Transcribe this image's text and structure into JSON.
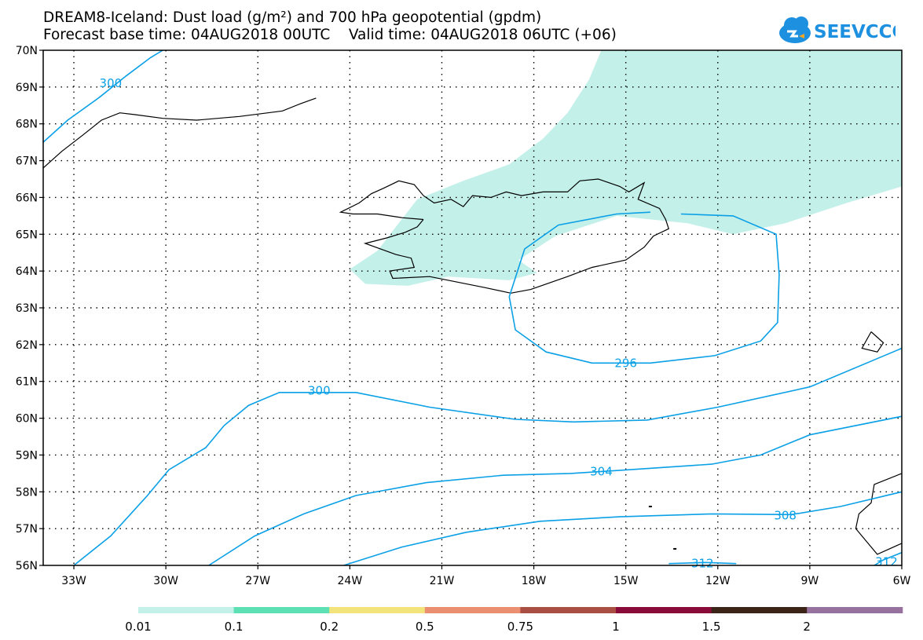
{
  "header": {
    "title_line1": "DREAM8-Iceland: Dust load (g/m²) and 700 hPa geopotential (gpdm)",
    "title_line2": "Forecast base time: 04AUG2018 00UTC    Valid time: 04AUG2018 06UTC (+06)"
  },
  "logo": {
    "text": "SEEVCCC",
    "icon": "cloud-logo-icon",
    "color": "#1e90e0"
  },
  "map": {
    "lon_range": [
      -34,
      -6
    ],
    "lat_range": [
      56,
      70
    ],
    "lon_ticks": [
      {
        "v": -33,
        "label": "33W"
      },
      {
        "v": -30,
        "label": "30W"
      },
      {
        "v": -27,
        "label": "27W"
      },
      {
        "v": -24,
        "label": "24W"
      },
      {
        "v": -21,
        "label": "21W"
      },
      {
        "v": -18,
        "label": "18W"
      },
      {
        "v": -15,
        "label": "15W"
      },
      {
        "v": -12,
        "label": "12W"
      },
      {
        "v": -9,
        "label": "9W"
      },
      {
        "v": -6,
        "label": "6W"
      }
    ],
    "lat_ticks": [
      {
        "v": 56,
        "label": "56N"
      },
      {
        "v": 57,
        "label": "57N"
      },
      {
        "v": 58,
        "label": "58N"
      },
      {
        "v": 59,
        "label": "59N"
      },
      {
        "v": 60,
        "label": "60N"
      },
      {
        "v": 61,
        "label": "61N"
      },
      {
        "v": 62,
        "label": "62N"
      },
      {
        "v": 63,
        "label": "63N"
      },
      {
        "v": 64,
        "label": "64N"
      },
      {
        "v": 65,
        "label": "65N"
      },
      {
        "v": 66,
        "label": "66N"
      },
      {
        "v": 67,
        "label": "67N"
      },
      {
        "v": 68,
        "label": "68N"
      },
      {
        "v": 69,
        "label": "69N"
      },
      {
        "v": 70,
        "label": "70N"
      }
    ],
    "contour_color": "#0aa0e6",
    "dust_fill_color": "#c4f0ea",
    "contours": [
      {
        "level": "300",
        "label_at": [
          -31.8,
          69.1
        ],
        "path": [
          [
            -34,
            67.5
          ],
          [
            -33.2,
            68.1
          ],
          [
            -32.2,
            68.7
          ],
          [
            -31.3,
            69.3
          ],
          [
            -30.5,
            69.8
          ],
          [
            -30.1,
            70
          ]
        ]
      },
      {
        "level": "296",
        "label_at": [
          -15.0,
          61.5
        ],
        "path": [
          [
            -13.2,
            65.55
          ],
          [
            -11.5,
            65.5
          ],
          [
            -10.1,
            65.0
          ],
          [
            -10.0,
            63.9
          ],
          [
            -10.05,
            62.6
          ],
          [
            -10.6,
            62.1
          ],
          [
            -12.1,
            61.7
          ],
          [
            -14.2,
            61.5
          ],
          [
            -16.1,
            61.5
          ],
          [
            -17.6,
            61.8
          ],
          [
            -18.6,
            62.4
          ],
          [
            -18.8,
            63.3
          ],
          [
            -18.3,
            64.6
          ],
          [
            -17.2,
            65.25
          ],
          [
            -15.3,
            65.55
          ],
          [
            -14.2,
            65.6
          ]
        ]
      },
      {
        "level": "300",
        "label_at": [
          -25.0,
          60.75
        ],
        "path": [
          [
            -33,
            56
          ],
          [
            -31.8,
            56.8
          ],
          [
            -30.6,
            57.9
          ],
          [
            -29.9,
            58.6
          ],
          [
            -28.7,
            59.2
          ],
          [
            -28.1,
            59.8
          ],
          [
            -27.3,
            60.35
          ],
          [
            -26.3,
            60.7
          ],
          [
            -23.8,
            60.7
          ],
          [
            -21.4,
            60.3
          ],
          [
            -18.6,
            59.97
          ],
          [
            -16.7,
            59.9
          ],
          [
            -14.3,
            59.95
          ],
          [
            -12.0,
            60.3
          ],
          [
            -9.0,
            60.85
          ],
          [
            -6,
            61.9
          ]
        ]
      },
      {
        "level": "304",
        "label_at": [
          -15.8,
          58.55
        ],
        "path": [
          [
            -28.6,
            56
          ],
          [
            -27.1,
            56.8
          ],
          [
            -25.5,
            57.4
          ],
          [
            -23.8,
            57.9
          ],
          [
            -21.5,
            58.25
          ],
          [
            -19,
            58.45
          ],
          [
            -16.8,
            58.5
          ],
          [
            -14.9,
            58.6
          ],
          [
            -12.2,
            58.75
          ],
          [
            -10.6,
            59.0
          ],
          [
            -9.0,
            59.55
          ],
          [
            -6,
            60.05
          ]
        ]
      },
      {
        "level": "308",
        "label_at": [
          -9.8,
          57.35
        ],
        "path": [
          [
            -24.2,
            56
          ],
          [
            -22.3,
            56.5
          ],
          [
            -20.2,
            56.9
          ],
          [
            -17.8,
            57.2
          ],
          [
            -15.2,
            57.32
          ],
          [
            -12.2,
            57.4
          ],
          [
            -9.6,
            57.38
          ],
          [
            -8.0,
            57.6
          ],
          [
            -6,
            58.0
          ]
        ]
      },
      {
        "level": "312",
        "label_at": [
          -12.5,
          56.05
        ],
        "path": [
          [
            -13.6,
            56.05
          ],
          [
            -12.4,
            56.08
          ],
          [
            -11.4,
            56.05
          ]
        ]
      },
      {
        "level": "312",
        "label_at": [
          -6.5,
          56.1
        ],
        "path": [
          [
            -6.9,
            56
          ],
          [
            -6.6,
            56.15
          ],
          [
            -6,
            56.35
          ]
        ]
      }
    ],
    "dust_region": [
      [
        -15.8,
        70
      ],
      [
        -6,
        70
      ],
      [
        -6,
        66.3
      ],
      [
        -7.8,
        65.85
      ],
      [
        -9.8,
        65.3
      ],
      [
        -11.5,
        65.0
      ],
      [
        -13.0,
        65.3
      ],
      [
        -15.3,
        65.5
      ],
      [
        -17.3,
        64.95
      ],
      [
        -18.5,
        64.3
      ],
      [
        -17.9,
        63.95
      ],
      [
        -18.8,
        63.75
      ],
      [
        -20.8,
        63.85
      ],
      [
        -22.1,
        63.6
      ],
      [
        -23.5,
        63.65
      ],
      [
        -24.0,
        64.05
      ],
      [
        -23.1,
        64.55
      ],
      [
        -22.5,
        65.2
      ],
      [
        -21.8,
        65.95
      ],
      [
        -20.3,
        66.45
      ],
      [
        -18.8,
        66.9
      ],
      [
        -17.7,
        67.6
      ],
      [
        -16.9,
        68.3
      ],
      [
        -16.2,
        69.2
      ]
    ],
    "coastlines": [
      [
        [
          -21.6,
          65.4
        ],
        [
          -22.3,
          65.45
        ],
        [
          -23.1,
          65.55
        ],
        [
          -23.9,
          65.55
        ],
        [
          -24.3,
          65.6
        ],
        [
          -23.7,
          65.85
        ],
        [
          -23.3,
          66.1
        ],
        [
          -22.9,
          66.25
        ],
        [
          -22.4,
          66.45
        ],
        [
          -21.9,
          66.35
        ],
        [
          -21.6,
          66.05
        ],
        [
          -21.25,
          65.85
        ],
        [
          -20.7,
          65.95
        ],
        [
          -20.3,
          65.75
        ],
        [
          -20.0,
          66.05
        ],
        [
          -19.4,
          66.0
        ],
        [
          -18.9,
          66.15
        ],
        [
          -18.4,
          66.05
        ],
        [
          -17.7,
          66.15
        ],
        [
          -16.9,
          66.15
        ],
        [
          -16.5,
          66.45
        ],
        [
          -15.9,
          66.5
        ],
        [
          -15.2,
          66.3
        ],
        [
          -14.9,
          66.15
        ],
        [
          -14.4,
          66.4
        ],
        [
          -14.6,
          65.95
        ],
        [
          -13.9,
          65.7
        ],
        [
          -13.7,
          65.4
        ],
        [
          -13.6,
          65.15
        ],
        [
          -14.1,
          64.95
        ],
        [
          -14.4,
          64.65
        ],
        [
          -15.0,
          64.3
        ],
        [
          -16.1,
          64.1
        ],
        [
          -16.9,
          63.85
        ],
        [
          -18.1,
          63.5
        ],
        [
          -18.75,
          63.4
        ],
        [
          -19.6,
          63.55
        ],
        [
          -20.5,
          63.7
        ],
        [
          -21.4,
          63.85
        ],
        [
          -22.6,
          63.8
        ],
        [
          -22.7,
          64.0
        ],
        [
          -21.9,
          64.1
        ],
        [
          -22.0,
          64.35
        ],
        [
          -22.5,
          64.45
        ],
        [
          -23.5,
          64.75
        ],
        [
          -22.8,
          64.9
        ],
        [
          -22.2,
          65.05
        ],
        [
          -21.8,
          65.2
        ],
        [
          -21.6,
          65.4
        ]
      ],
      [
        [
          -34,
          66.8
        ],
        [
          -33.4,
          67.25
        ],
        [
          -32.7,
          67.7
        ],
        [
          -32.1,
          68.1
        ],
        [
          -31.5,
          68.3
        ],
        [
          -31.0,
          68.25
        ],
        [
          -30.1,
          68.15
        ],
        [
          -29.0,
          68.1
        ],
        [
          -27.6,
          68.2
        ],
        [
          -26.2,
          68.35
        ],
        [
          -25.6,
          68.55
        ],
        [
          -25.1,
          68.7
        ]
      ],
      [
        [
          -7.0,
          62.35
        ],
        [
          -6.6,
          62.05
        ],
        [
          -6.8,
          61.8
        ],
        [
          -7.3,
          61.9
        ],
        [
          -7.0,
          62.35
        ]
      ],
      [
        [
          -6,
          58.5
        ],
        [
          -6.9,
          58.2
        ],
        [
          -7.0,
          57.7
        ],
        [
          -7.4,
          57.4
        ],
        [
          -7.5,
          57.0
        ],
        [
          -7.2,
          56.7
        ],
        [
          -6.8,
          56.3
        ],
        [
          -6,
          56.6
        ]
      ]
    ],
    "islets": [
      [
        -14.2,
        57.6
      ],
      [
        -13.4,
        56.45
      ]
    ]
  },
  "colorbar": {
    "bins": [
      {
        "color": "#c4f0ea"
      },
      {
        "color": "#5ce0b4"
      },
      {
        "color": "#f2e47a"
      },
      {
        "color": "#ea9070"
      },
      {
        "color": "#a84e42"
      },
      {
        "color": "#8a0a38"
      },
      {
        "color": "#3c2418"
      },
      {
        "color": "#98729e"
      }
    ],
    "labels": [
      "0.01",
      "0.1",
      "0.2",
      "0.5",
      "0.75",
      "1",
      "1.5",
      "2"
    ]
  }
}
